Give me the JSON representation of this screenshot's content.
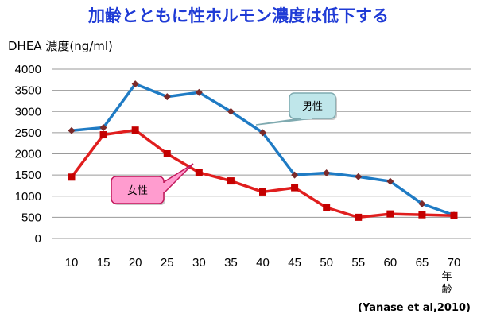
{
  "chart_data": {
    "type": "line",
    "title": "加齢とともに性ホルモン濃度は低下する",
    "ylabel": "DHEA 濃度(ng/ml)",
    "xlabel": "年齢",
    "source": "(Yanase et al,2010)",
    "x": [
      10,
      15,
      20,
      25,
      30,
      35,
      40,
      45,
      50,
      55,
      60,
      65,
      70
    ],
    "ylim": [
      0,
      4000
    ],
    "yticks": [
      0,
      500,
      1000,
      1500,
      2000,
      2500,
      3000,
      3500,
      4000
    ],
    "grid": true,
    "series": [
      {
        "name": "男性",
        "color": "#1f7bc4",
        "marker_color": "#7a2a2a",
        "marker": "diamond",
        "values": [
          2550,
          2620,
          3650,
          3350,
          3450,
          3000,
          2500,
          1500,
          1550,
          1460,
          1350,
          820,
          550
        ]
      },
      {
        "name": "女性",
        "color": "#e01e1e",
        "marker_color": "#c40000",
        "marker": "square",
        "values": [
          1450,
          2450,
          2560,
          2000,
          1560,
          1360,
          1100,
          1200,
          730,
          500,
          580,
          560,
          540
        ]
      }
    ],
    "callouts": [
      {
        "series": "男性",
        "label": "男性",
        "fill": "#bfe6ea",
        "stroke": "#7faab0"
      },
      {
        "series": "女性",
        "label": "女性",
        "fill": "#ff9ccf",
        "stroke": "#c2185b"
      }
    ]
  }
}
